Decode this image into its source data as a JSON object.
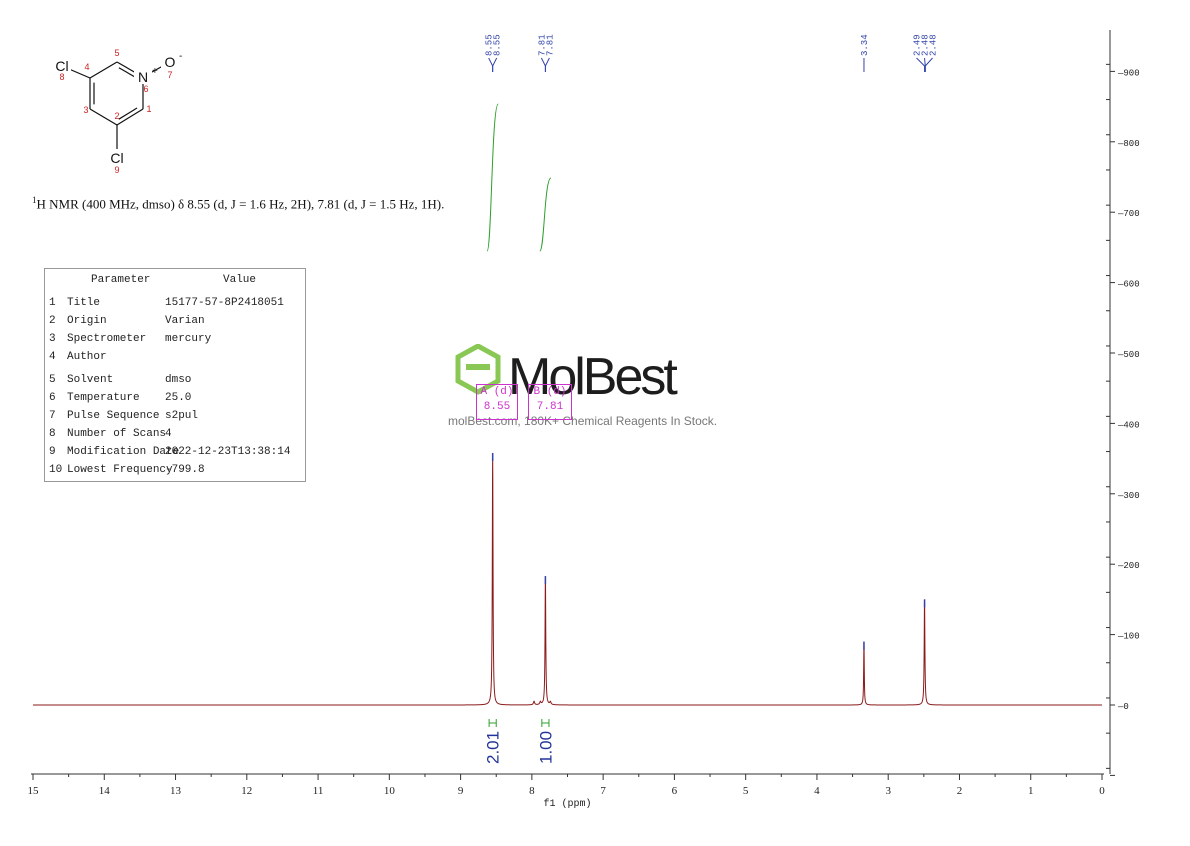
{
  "molecule": {
    "atoms": [
      {
        "symbol": "Cl",
        "number": "8"
      },
      {
        "symbol": "C",
        "number": "4"
      },
      {
        "symbol": "C",
        "number": "5"
      },
      {
        "symbol": "N",
        "number": "6",
        "charge": "+"
      },
      {
        "symbol": "O",
        "number": "7",
        "charge": "-"
      },
      {
        "symbol": "C",
        "number": "1"
      },
      {
        "symbol": "C",
        "number": "2"
      },
      {
        "symbol": "C",
        "number": "3"
      },
      {
        "symbol": "Cl",
        "number": "9"
      }
    ]
  },
  "caption": {
    "superscript": "1",
    "text": "H NMR (400 MHz, dmso) δ 8.55 (d, J = 1.6 Hz, 2H), 7.81 (d, J = 1.5 Hz, 1H)."
  },
  "parameters": {
    "header_param": "Parameter",
    "header_value": "Value",
    "rows": [
      {
        "idx": "1",
        "param": "Title",
        "value": "15177-57-8P2418051"
      },
      {
        "idx": "2",
        "param": "Origin",
        "value": "Varian"
      },
      {
        "idx": "3",
        "param": "Spectrometer",
        "value": "mercury"
      },
      {
        "idx": "4",
        "param": "Author",
        "value": ""
      },
      {
        "idx": "5",
        "param": "Solvent",
        "value": "dmso"
      },
      {
        "idx": "6",
        "param": "Temperature",
        "value": "25.0"
      },
      {
        "idx": "7",
        "param": "Pulse Sequence",
        "value": "s2pul"
      },
      {
        "idx": "8",
        "param": "Number of Scans",
        "value": "4"
      },
      {
        "idx": "9",
        "param": "Modification Date",
        "value": "2022-12-23T13:38:14"
      },
      {
        "idx": "10",
        "param": "Lowest Frequency",
        "value": "-799.8"
      }
    ]
  },
  "watermark": {
    "logo_text": "MolBest",
    "tagline": "molBest.com, 180K+ Chemical Reagents In Stock."
  },
  "multiplets": [
    {
      "letter": "A",
      "mult": "(d)",
      "shift": "8.55"
    },
    {
      "letter": "B",
      "mult": "(d)",
      "shift": "7.81"
    }
  ],
  "colors": {
    "spectrum": "#8b1a1a",
    "integral_curve": "#2ca02c",
    "peak_label": "#3344aa",
    "multiplet_box": "#cc33cc",
    "logo_green": "#7dc242"
  },
  "chart_data": {
    "type": "line",
    "xlabel": "f1 (ppm)",
    "xlim": [
      15,
      0
    ],
    "x_reversed": true,
    "ylim": [
      -100,
      960
    ],
    "x_ticks": [
      15,
      14,
      13,
      12,
      11,
      10,
      9,
      8,
      7,
      6,
      5,
      4,
      3,
      2,
      1,
      0
    ],
    "y_ticks": [
      0,
      100,
      200,
      300,
      400,
      500,
      600,
      700,
      800,
      900
    ],
    "y_axis_side": "right",
    "peak_labels": [
      {
        "group": [
          8.55,
          8.55
        ],
        "labels": [
          "8.55",
          "8.55"
        ]
      },
      {
        "group": [
          7.81,
          7.81
        ],
        "labels": [
          "7.81",
          "7.81"
        ]
      },
      {
        "group": [
          3.34
        ],
        "labels": [
          "3.34"
        ]
      },
      {
        "group": [
          2.49,
          2.48,
          2.48
        ],
        "labels": [
          "2.49",
          "2.48",
          "2.48"
        ]
      }
    ],
    "peaks": [
      {
        "ppm": 8.55,
        "height": 358,
        "width": 0.012
      },
      {
        "ppm": 7.81,
        "height": 183,
        "width": 0.012
      },
      {
        "ppm": 3.34,
        "height": 90,
        "width": 0.01
      },
      {
        "ppm": 2.49,
        "height": 150,
        "width": 0.012
      },
      {
        "ppm": 7.97,
        "height": 5,
        "width": 0.02
      },
      {
        "ppm": 7.88,
        "height": 4,
        "width": 0.02
      },
      {
        "ppm": 7.74,
        "height": 4,
        "width": 0.02
      }
    ],
    "integrals": [
      {
        "from": 8.6,
        "to": 8.5,
        "value": "2.01",
        "curve_bottom": 645,
        "curve_top": 855
      },
      {
        "from": 7.86,
        "to": 7.76,
        "value": "1.00",
        "curve_bottom": 645,
        "curve_top": 750
      }
    ]
  }
}
